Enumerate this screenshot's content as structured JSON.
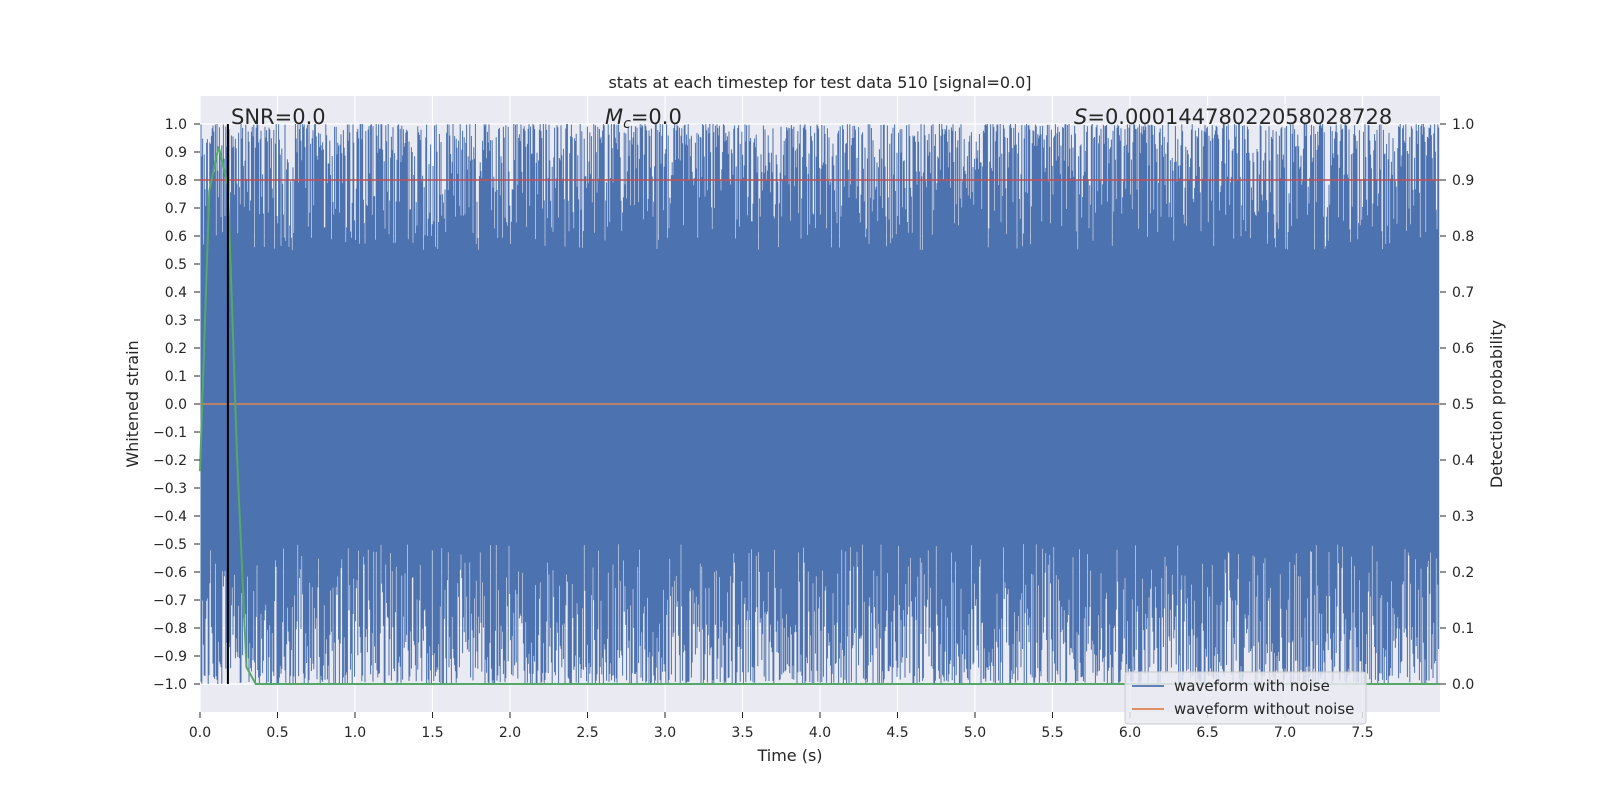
{
  "chart_data": {
    "type": "line",
    "title": "stats at each timestep for test data 510 [signal=0.0]",
    "xlabel": "Time (s)",
    "ylabel": "Whitened strain",
    "ylabel_right": "Detection probability",
    "xlim": [
      0.0,
      8.0
    ],
    "ylim": [
      -1.1,
      1.1
    ],
    "ylim_right": [
      -0.05,
      1.05
    ],
    "x_ticks": [
      "0.0",
      "0.5",
      "1.0",
      "1.5",
      "2.0",
      "2.5",
      "3.0",
      "3.5",
      "4.0",
      "4.5",
      "5.0",
      "5.5",
      "6.0",
      "6.5",
      "7.0",
      "7.5"
    ],
    "y_ticks": [
      "1.0",
      "0.9",
      "0.8",
      "0.7",
      "0.6",
      "0.5",
      "0.4",
      "0.3",
      "0.2",
      "0.1",
      "0.0",
      "−0.1",
      "−0.2",
      "−0.3",
      "−0.4",
      "−0.5",
      "−0.6",
      "−0.7",
      "−0.8",
      "−0.9",
      "−1.0"
    ],
    "y_right_ticks": [
      "1.0",
      "0.9",
      "0.8",
      "0.7",
      "0.6",
      "0.5",
      "0.4",
      "0.3",
      "0.2",
      "0.1",
      "0.0"
    ],
    "annotations": {
      "snr": "SNR=0.0",
      "mc_symbol": "M",
      "mc_sub": "c",
      "mc_value": "=0.0",
      "s_symbol": "S",
      "s_value": "=0.00014478022058028728"
    },
    "threshold": 0.9,
    "marker_time": 0.18,
    "series": [
      {
        "name": "waveform with noise",
        "color": "#4c72b0",
        "y_range": [
          -1.0,
          1.0
        ],
        "sample_count": 32000,
        "note": "noise fills nearly full [-1,1] band"
      },
      {
        "name": "waveform without noise",
        "color": "#dd8452",
        "values_constant": 0.0
      },
      {
        "name": "Detection probability",
        "color": "#55a868",
        "x": [
          0.0,
          0.06,
          0.12,
          0.18,
          0.24,
          0.3,
          0.36,
          0.42,
          8.0
        ],
        "y": [
          0.38,
          0.88,
          0.96,
          0.89,
          0.4,
          0.03,
          0.0,
          0.0,
          0.0
        ]
      }
    ],
    "legend": [
      "waveform with noise",
      "waveform without noise"
    ],
    "legend_position": "lower-right",
    "grid": true
  }
}
